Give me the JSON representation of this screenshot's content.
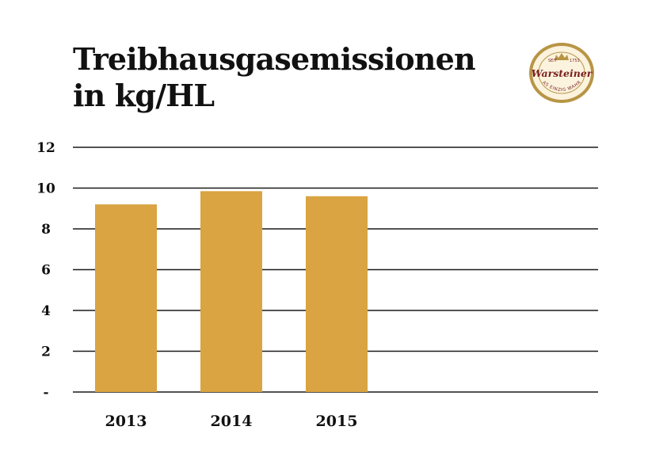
{
  "title": "Treibhausgasemissionen in kg/HL",
  "logo": {
    "icon": "warsteiner-seal-icon",
    "brand": "Warsteiner",
    "tagline": "DAS EINZIG WAHRE",
    "sealed": "SEIT",
    "year": "1753",
    "colors": {
      "ring": "#b89545",
      "fill": "#fbf3de",
      "text": "#7a1e1e"
    }
  },
  "chart_data": {
    "type": "bar",
    "title": "Treibhausgasemissionen in kg/HL",
    "categories": [
      "2013",
      "2014",
      "2015"
    ],
    "values": [
      9.2,
      9.85,
      9.6
    ],
    "ylim": [
      0,
      12
    ],
    "yticks": [
      0,
      2,
      4,
      6,
      8,
      10,
      12
    ],
    "ytick_labels": [
      "-",
      "2",
      "4",
      "6",
      "8",
      "10",
      "12"
    ],
    "grid": true,
    "xlabel": "",
    "ylabel": "",
    "colors": {
      "bar": "#d9a441",
      "grid": "#1a1a1a"
    }
  }
}
